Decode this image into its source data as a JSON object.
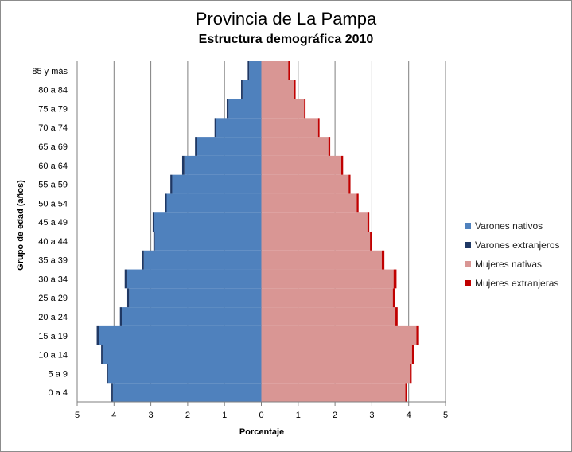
{
  "chart_data": {
    "type": "bar",
    "orientation": "horizontal",
    "title": "Provincia de La Pampa",
    "subtitle": "Estructura demográfica 2010",
    "xlabel": "Porcentaje",
    "ylabel": "Grupo de edad (años)",
    "xlim": [
      -5,
      5
    ],
    "x_ticks": [
      "5",
      "4",
      "3",
      "2",
      "1",
      "0",
      "1",
      "2",
      "3",
      "4",
      "5"
    ],
    "categories": [
      "0 a 4",
      "5 a 9",
      "10 a 14",
      "15 a 19",
      "20 a 24",
      "25 a 29",
      "30 a 34",
      "35 a 39",
      "40 a 44",
      "45 a 49",
      "50 a 54",
      "55 a 59",
      "60 a 64",
      "65 a 69",
      "70 a 74",
      "75 a 79",
      "80 a 84",
      "85 y más"
    ],
    "series": [
      {
        "name": "Varones nativos",
        "color": "#4f81bd",
        "values": [
          -4.03,
          -4.16,
          -4.31,
          -4.41,
          -3.79,
          -3.59,
          -3.64,
          -3.19,
          -2.89,
          -2.91,
          -2.57,
          -2.42,
          -2.09,
          -1.74,
          -1.22,
          -0.89,
          -0.51,
          -0.33
        ]
      },
      {
        "name": "Varones extranjeros",
        "color": "#1f3864",
        "values": [
          -0.04,
          -0.04,
          -0.04,
          -0.06,
          -0.05,
          -0.05,
          -0.07,
          -0.06,
          -0.04,
          -0.04,
          -0.04,
          -0.05,
          -0.06,
          -0.06,
          -0.05,
          -0.05,
          -0.04,
          -0.04
        ]
      },
      {
        "name": "Mujeres nativas",
        "color": "#d99694",
        "values": [
          3.91,
          4.03,
          4.09,
          4.21,
          3.64,
          3.57,
          3.59,
          3.27,
          2.95,
          2.88,
          2.59,
          2.37,
          2.17,
          1.82,
          1.54,
          1.16,
          0.89,
          0.73
        ]
      },
      {
        "name": "Mujeres extranjeras",
        "color": "#c00000",
        "values": [
          0.05,
          0.05,
          0.06,
          0.07,
          0.06,
          0.06,
          0.08,
          0.07,
          0.05,
          0.05,
          0.05,
          0.05,
          0.05,
          0.05,
          0.04,
          0.04,
          0.04,
          0.04
        ]
      }
    ],
    "grid": true,
    "legend_position": "right"
  }
}
